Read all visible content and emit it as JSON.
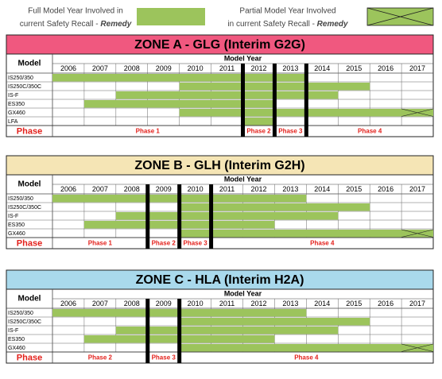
{
  "legend": {
    "full": {
      "line1": "Full Model Year Involved in",
      "line2": "current Safety Recall - ",
      "emphasis": "Remedy"
    },
    "partial": {
      "line1": "Partial Model Year Involved",
      "line2": "in current Safety Recall - ",
      "emphasis": "Remedy"
    }
  },
  "zones": [
    {
      "title": "ZONE A - GLG (Interim G2G)",
      "color": "#f0587f",
      "model_label": "Model",
      "model_year_label": "Model Year",
      "years": [
        2006,
        2007,
        2008,
        2009,
        2010,
        2011,
        2012,
        2013,
        2014,
        2015,
        2016,
        2017
      ],
      "rows": [
        {
          "model": "IS250/350",
          "full_years": [
            2006,
            2013
          ],
          "partial_years": []
        },
        {
          "model": "IS250C/350C",
          "full_years": [
            2010,
            2015
          ],
          "partial_years": []
        },
        {
          "model": "IS-F",
          "full_years": [
            2008,
            2014
          ],
          "partial_years": []
        },
        {
          "model": "ES350",
          "full_years": [
            2007,
            2012
          ],
          "partial_years": []
        },
        {
          "model": "GX460",
          "full_years": [
            2010,
            2016
          ],
          "partial_years": [
            2017
          ]
        },
        {
          "model": "LFA",
          "full_years": [
            2012,
            2012
          ],
          "partial_years": []
        }
      ],
      "phase_label": "Phase",
      "phases": [
        {
          "label": "Phase 1",
          "from": 2006,
          "to": 2011
        },
        {
          "label": "Phase 2",
          "from": 2012,
          "to": 2012
        },
        {
          "label": "Phase 3",
          "from": 2013,
          "to": 2013
        },
        {
          "label": "Phase 4",
          "from": 2014,
          "to": 2017
        }
      ]
    },
    {
      "title": "ZONE B - GLH (Interim G2H)",
      "color": "#f5e5b5",
      "model_label": "Model",
      "model_year_label": "Model Year",
      "years": [
        2006,
        2007,
        2008,
        2009,
        2010,
        2011,
        2012,
        2013,
        2014,
        2015,
        2016,
        2017
      ],
      "rows": [
        {
          "model": "IS250/350",
          "full_years": [
            2006,
            2013
          ],
          "partial_years": []
        },
        {
          "model": "IS250C/350C",
          "full_years": [
            2010,
            2015
          ],
          "partial_years": []
        },
        {
          "model": "IS-F",
          "full_years": [
            2008,
            2014
          ],
          "partial_years": []
        },
        {
          "model": "ES350",
          "full_years": [
            2007,
            2012
          ],
          "partial_years": []
        },
        {
          "model": "GX460",
          "full_years": [
            2010,
            2016
          ],
          "partial_years": [
            2017
          ]
        }
      ],
      "phase_label": "Phase",
      "phases": [
        {
          "label": "Phase 1",
          "from": 2006,
          "to": 2008
        },
        {
          "label": "Phase 2",
          "from": 2009,
          "to": 2009
        },
        {
          "label": "Phase 3",
          "from": 2010,
          "to": 2010
        },
        {
          "label": "Phase 4",
          "from": 2011,
          "to": 2017
        }
      ]
    },
    {
      "title": "ZONE C - HLA (Interim H2A)",
      "color": "#a9d9ec",
      "model_label": "Model",
      "model_year_label": "Model Year",
      "years": [
        2006,
        2007,
        2008,
        2009,
        2010,
        2011,
        2012,
        2013,
        2014,
        2015,
        2016,
        2017
      ],
      "rows": [
        {
          "model": "IS250/350",
          "full_years": [
            2006,
            2013
          ],
          "partial_years": []
        },
        {
          "model": "IS250C/350C",
          "full_years": [
            2010,
            2015
          ],
          "partial_years": []
        },
        {
          "model": "IS-F",
          "full_years": [
            2008,
            2014
          ],
          "partial_years": []
        },
        {
          "model": "ES350",
          "full_years": [
            2007,
            2012
          ],
          "partial_years": []
        },
        {
          "model": "GX460",
          "full_years": [
            2010,
            2016
          ],
          "partial_years": [
            2017
          ]
        }
      ],
      "phase_label": "Phase",
      "phases": [
        {
          "label": "Phase 2",
          "from": 2006,
          "to": 2008
        },
        {
          "label": "Phase 3",
          "from": 2009,
          "to": 2009
        },
        {
          "label": "Phase 4",
          "from": 2010,
          "to": 2017
        }
      ]
    }
  ]
}
